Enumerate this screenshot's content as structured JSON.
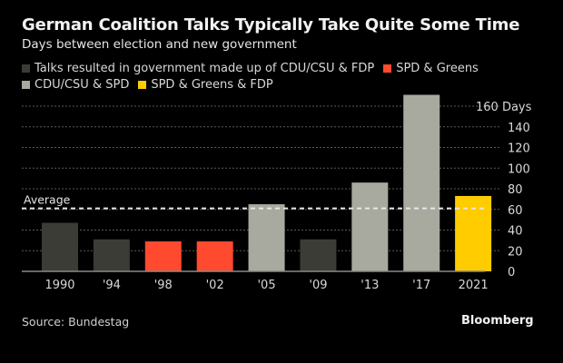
{
  "header": {
    "title": "German Coalition Talks Typically Take Quite Some Time",
    "subtitle": "Days between election and new government"
  },
  "legend": [
    {
      "label": "Talks resulted in government made up of CDU/CSU & FDP",
      "color": "#3b3c35"
    },
    {
      "label": "SPD & Greens",
      "color": "#ff4a2f"
    },
    {
      "label": "CDU/CSU & SPD",
      "color": "#a8aaa0"
    },
    {
      "label": "SPD & Greens & FDP",
      "color": "#ffcc00"
    }
  ],
  "footer": {
    "source": "Source: Bundestag",
    "brand": "Bloomberg"
  },
  "chart_data": {
    "type": "bar",
    "title": "German Coalition Talks Typically Take Quite Some Time",
    "subtitle": "Days between election and new government",
    "xlabel": "",
    "ylabel": "Days",
    "categories": [
      "1990",
      "'94",
      "'98",
      "'02",
      "'05",
      "'09",
      "'13",
      "'17",
      "2021"
    ],
    "values": [
      47,
      31,
      29,
      29,
      65,
      31,
      86,
      171,
      73
    ],
    "groups": [
      "CDU/CSU & FDP",
      "CDU/CSU & FDP",
      "SPD & Greens",
      "SPD & Greens",
      "CDU/CSU & SPD",
      "CDU/CSU & FDP",
      "CDU/CSU & SPD",
      "CDU/CSU & SPD",
      "SPD & Greens & FDP"
    ],
    "group_colors": {
      "CDU/CSU & FDP": "#3b3c35",
      "SPD & Greens": "#ff4a2f",
      "CDU/CSU & SPD": "#a8aaa0",
      "SPD & Greens & FDP": "#ffcc00"
    },
    "ylim": [
      0,
      172
    ],
    "yticks": [
      0,
      20,
      40,
      60,
      80,
      100,
      120,
      140,
      160
    ],
    "ytick_labels": [
      "0",
      "20",
      "40",
      "60",
      "80",
      "100",
      "120",
      "140",
      "160 Days"
    ],
    "grid": true,
    "average": {
      "label": "Average",
      "value": 61
    },
    "legend_position": "top-left",
    "axis_side": "right"
  }
}
